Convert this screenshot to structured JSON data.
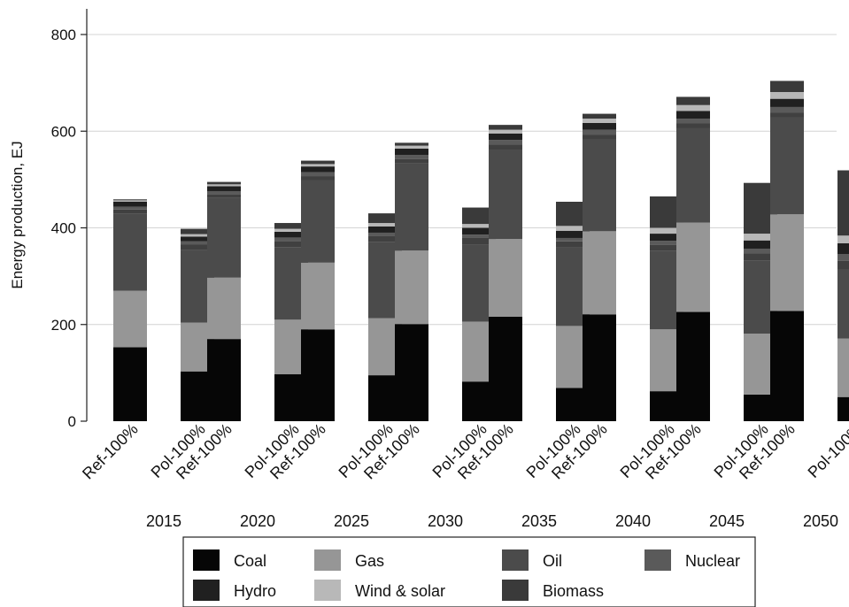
{
  "chart_data": {
    "type": "bar",
    "stacked": true,
    "ylabel": "Energy production, EJ",
    "xlabel": "",
    "ylim": [
      0,
      850
    ],
    "yticks": [
      0,
      200,
      400,
      600,
      800
    ],
    "grid": true,
    "legend_position": "bottom",
    "groups": [
      "2015",
      "2020",
      "2025",
      "2030",
      "2035",
      "2040",
      "2045",
      "2050"
    ],
    "bar_labels": [
      "Ref-100%",
      "Pol-100%"
    ],
    "series": [
      {
        "name": "Coal",
        "color": "#060606",
        "values": [
          [
            153,
            103
          ],
          [
            170,
            97
          ],
          [
            190,
            95
          ],
          [
            201,
            82
          ],
          [
            216,
            69
          ],
          [
            221,
            62
          ],
          [
            226,
            55
          ],
          [
            228,
            50
          ]
        ]
      },
      {
        "name": "Gas",
        "color": "#969696",
        "values": [
          [
            117,
            101
          ],
          [
            127,
            113
          ],
          [
            138,
            118
          ],
          [
            152,
            124
          ],
          [
            161,
            128
          ],
          [
            172,
            128
          ],
          [
            185,
            126
          ],
          [
            200,
            121
          ]
        ]
      },
      {
        "name": "Oil",
        "color": "#4b4b4b",
        "values": [
          [
            160,
            150
          ],
          [
            165,
            150
          ],
          [
            170,
            158
          ],
          [
            180,
            160
          ],
          [
            185,
            162
          ],
          [
            190,
            162
          ],
          [
            195,
            152
          ],
          [
            200,
            143
          ]
        ]
      },
      {
        "name": "Biomass",
        "color": "#404040",
        "values": [
          [
            8,
            12
          ],
          [
            8,
            13
          ],
          [
            9,
            13
          ],
          [
            9,
            13
          ],
          [
            10,
            13
          ],
          [
            10,
            13
          ],
          [
            10,
            14
          ],
          [
            10,
            18
          ]
        ]
      },
      {
        "name": "Nuclear",
        "color": "#5a5a5a",
        "values": [
          [
            6,
            6
          ],
          [
            6,
            7
          ],
          [
            8,
            6
          ],
          [
            9,
            7
          ],
          [
            10,
            7
          ],
          [
            10,
            8
          ],
          [
            10,
            10
          ],
          [
            12,
            14
          ]
        ]
      },
      {
        "name": "Hydro",
        "color": "#202020",
        "values": [
          [
            10,
            10
          ],
          [
            10,
            12
          ],
          [
            12,
            13
          ],
          [
            13,
            14
          ],
          [
            13,
            15
          ],
          [
            14,
            15
          ],
          [
            16,
            17
          ],
          [
            17,
            22
          ]
        ]
      },
      {
        "name": "Wind & solar",
        "color": "#b8b8b8",
        "values": [
          [
            3,
            5
          ],
          [
            4,
            6
          ],
          [
            5,
            7
          ],
          [
            6,
            8
          ],
          [
            8,
            10
          ],
          [
            9,
            12
          ],
          [
            12,
            14
          ],
          [
            14,
            16
          ]
        ]
      },
      {
        "name": "Biomass",
        "color": "#3a3a3a",
        "values": [
          [
            2,
            11
          ],
          [
            5,
            12
          ],
          [
            7,
            20
          ],
          [
            6,
            34
          ],
          [
            10,
            50
          ],
          [
            10,
            65
          ],
          [
            17,
            105
          ],
          [
            23,
            135
          ]
        ]
      }
    ]
  },
  "legend": {
    "items": [
      {
        "label": "Coal",
        "color": "#060606"
      },
      {
        "label": "Gas",
        "color": "#969696"
      },
      {
        "label": "Oil",
        "color": "#4b4b4b"
      },
      {
        "label": "Nuclear",
        "color": "#5a5a5a"
      },
      {
        "label": "Hydro",
        "color": "#202020"
      },
      {
        "label": "Wind & solar",
        "color": "#b8b8b8"
      },
      {
        "label": "Biomass",
        "color": "#3a3a3a"
      }
    ]
  }
}
